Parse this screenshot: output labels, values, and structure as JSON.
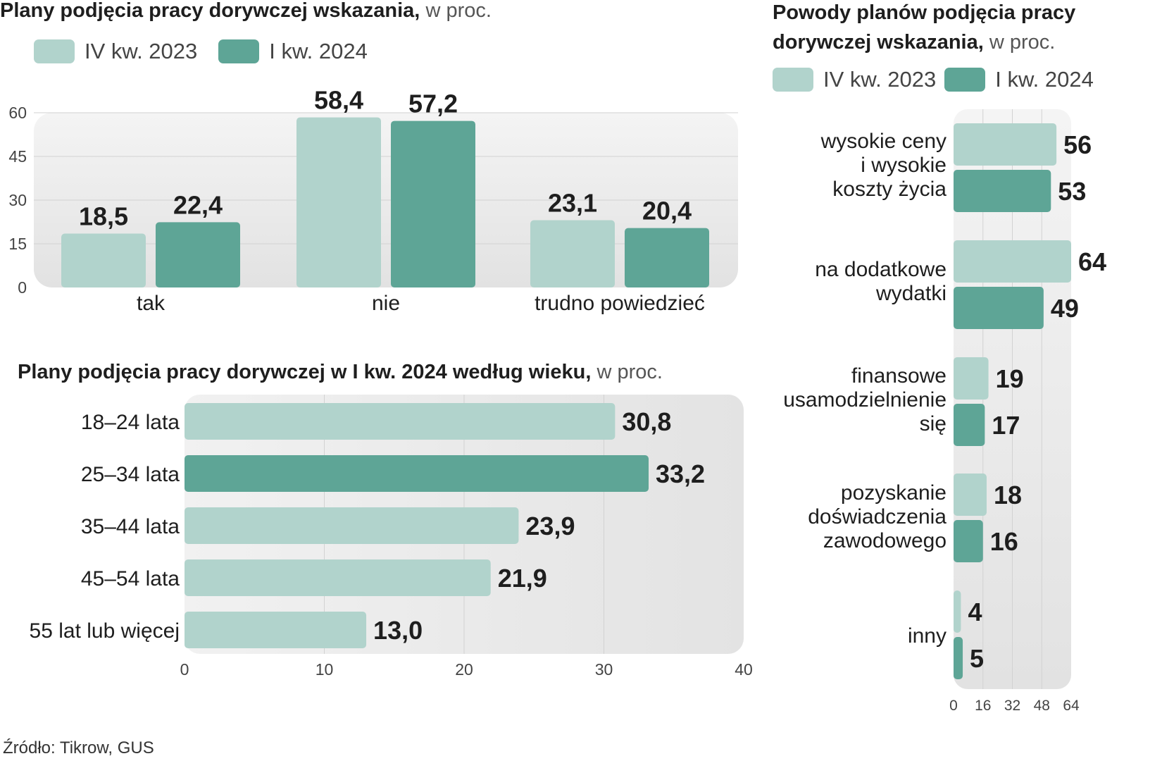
{
  "colors": {
    "series1": "#b1d3cc",
    "series2": "#5ea596",
    "panel": "#e8e8e8",
    "grid": "#d2d2d2"
  },
  "legend_labels": [
    "IV kw. 2023",
    "I kw. 2024"
  ],
  "source": "Źródło: Tikrow, GUS",
  "chart_data": [
    {
      "type": "bar",
      "title": "Plany podjęcia  pracy dorywczej wskazania,",
      "unit": "w proc.",
      "categories": [
        "tak",
        "nie",
        "trudno powiedzieć"
      ],
      "series": [
        {
          "name": "IV kw. 2023",
          "values": [
            18.5,
            58.4,
            23.1
          ],
          "labels": [
            "18,5",
            "58,4",
            "23,1"
          ]
        },
        {
          "name": "I kw. 2024",
          "values": [
            22.4,
            57.2,
            20.4
          ],
          "labels": [
            "22,4",
            "57,2",
            "20,4"
          ]
        }
      ],
      "yticks": [
        0,
        15,
        30,
        45,
        60
      ],
      "ylim": [
        0,
        60
      ],
      "grid": true
    },
    {
      "type": "bar",
      "orientation": "horizontal",
      "title": "Plany podjęcia  pracy dorywczej w I kw. 2024 według wieku,",
      "unit": "w proc.",
      "categories": [
        "18–24 lata",
        "25–34 lata",
        "35–44 lata",
        "45–54 lata",
        "55 lat lub więcej"
      ],
      "values": [
        30.8,
        33.2,
        23.9,
        21.9,
        13.0
      ],
      "labels": [
        "30,8",
        "33,2",
        "23,9",
        "21,9",
        "13,0"
      ],
      "highlight_index": 1,
      "xticks": [
        0,
        10,
        20,
        30,
        40
      ],
      "xlim": [
        0,
        40
      ],
      "grid": true
    },
    {
      "type": "bar",
      "orientation": "horizontal",
      "title_line1": "Powody planów podjęcia pracy",
      "title_line2": "dorywczej  wskazania,",
      "unit": "w proc.",
      "categories": [
        [
          "wysokie ceny",
          "i wysokie",
          "koszty życia"
        ],
        [
          "na dodatkowe",
          "wydatki"
        ],
        [
          "finansowe",
          "usamodzielnienie",
          "się"
        ],
        [
          "pozyskanie",
          "doświadczenia",
          "zawodowego"
        ],
        [
          "inny"
        ]
      ],
      "series": [
        {
          "name": "IV kw. 2023",
          "values": [
            56,
            64,
            19,
            18,
            4
          ],
          "labels": [
            "56",
            "64",
            "19",
            "18",
            "4"
          ]
        },
        {
          "name": "I kw. 2024",
          "values": [
            53,
            49,
            17,
            16,
            5
          ],
          "labels": [
            "53",
            "49",
            "17",
            "16",
            "5"
          ]
        }
      ],
      "xticks": [
        0,
        16,
        32,
        48,
        64
      ],
      "xlim": [
        0,
        64
      ],
      "grid": true
    }
  ]
}
